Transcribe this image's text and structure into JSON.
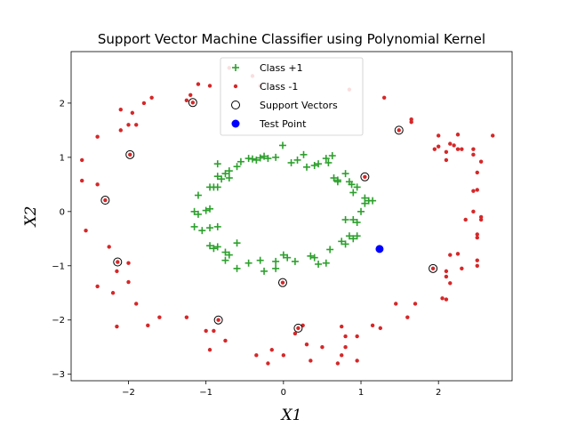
{
  "chart_data": {
    "type": "scatter",
    "title": "Support Vector Machine Classifier using Polynomial Kernel",
    "xlabel": "X1",
    "ylabel": "X2",
    "xlim": [
      -2.74,
      2.95
    ],
    "ylim": [
      -3.12,
      2.95
    ],
    "xticks": [
      -2,
      -1,
      0,
      1,
      2
    ],
    "yticks": [
      -3,
      -2,
      -1,
      0,
      1,
      2
    ],
    "grid": false,
    "legend_position": "top-center",
    "legend": [
      "Class +1",
      "Class -1",
      "Support Vectors",
      "Test Point"
    ],
    "colors": {
      "class_pos": "#2ca02c",
      "class_neg": "#d62728",
      "test_point": "#0000ff",
      "support_vector_edge": "#000000"
    },
    "series": [
      {
        "name": "Class +1",
        "marker": "plus",
        "points": [
          [
            -0.01,
            1.22
          ],
          [
            0.26,
            1.05
          ],
          [
            0.63,
            1.03
          ],
          [
            0.55,
            0.98
          ],
          [
            0.58,
            0.9
          ],
          [
            0.45,
            0.88
          ],
          [
            0.4,
            0.85
          ],
          [
            0.3,
            0.82
          ],
          [
            0.18,
            0.95
          ],
          [
            0.1,
            0.9
          ],
          [
            -0.1,
            1.0
          ],
          [
            -0.2,
            0.98
          ],
          [
            -0.25,
            1.02
          ],
          [
            -0.3,
            0.99
          ],
          [
            -0.35,
            0.95
          ],
          [
            -0.4,
            0.97
          ],
          [
            -0.45,
            0.98
          ],
          [
            -0.55,
            0.92
          ],
          [
            -0.6,
            0.83
          ],
          [
            -0.7,
            0.75
          ],
          [
            -0.75,
            0.7
          ],
          [
            -0.85,
            0.65
          ],
          [
            -0.8,
            0.6
          ],
          [
            -0.7,
            0.62
          ],
          [
            -0.85,
            0.88
          ],
          [
            -0.95,
            0.45
          ],
          [
            -0.9,
            0.45
          ],
          [
            -0.85,
            0.45
          ],
          [
            -1.1,
            0.3
          ],
          [
            -1.15,
            0.0
          ],
          [
            -1.0,
            0.02
          ],
          [
            -0.95,
            0.05
          ],
          [
            -1.1,
            -0.05
          ],
          [
            -1.15,
            -0.28
          ],
          [
            -1.05,
            -0.35
          ],
          [
            -0.95,
            -0.3
          ],
          [
            -0.85,
            -0.28
          ],
          [
            -0.95,
            -0.63
          ],
          [
            -0.9,
            -0.68
          ],
          [
            -0.85,
            -0.65
          ],
          [
            -0.75,
            -0.75
          ],
          [
            -0.7,
            -0.8
          ],
          [
            -0.75,
            -0.9
          ],
          [
            -0.6,
            -0.58
          ],
          [
            -0.6,
            -1.05
          ],
          [
            -0.45,
            -0.95
          ],
          [
            -0.3,
            -0.9
          ],
          [
            -0.25,
            -1.1
          ],
          [
            -0.1,
            -0.92
          ],
          [
            -0.1,
            -1.05
          ],
          [
            0.0,
            -0.8
          ],
          [
            0.05,
            -0.85
          ],
          [
            0.15,
            -0.92
          ],
          [
            0.35,
            -0.82
          ],
          [
            0.4,
            -0.85
          ],
          [
            0.45,
            -0.97
          ],
          [
            0.55,
            -0.95
          ],
          [
            0.6,
            -0.7
          ],
          [
            0.75,
            -0.55
          ],
          [
            0.85,
            -0.45
          ],
          [
            0.9,
            -0.5
          ],
          [
            0.95,
            -0.45
          ],
          [
            0.8,
            -0.6
          ],
          [
            0.8,
            -0.15
          ],
          [
            0.9,
            -0.15
          ],
          [
            0.95,
            -0.2
          ],
          [
            1.0,
            0.0
          ],
          [
            1.05,
            0.15
          ],
          [
            1.1,
            0.2
          ],
          [
            1.15,
            0.2
          ],
          [
            1.05,
            0.25
          ],
          [
            0.9,
            0.35
          ],
          [
            0.95,
            0.45
          ],
          [
            0.88,
            0.5
          ],
          [
            0.85,
            0.55
          ],
          [
            0.7,
            0.58
          ],
          [
            0.65,
            0.62
          ],
          [
            0.7,
            0.55
          ],
          [
            0.8,
            0.7
          ]
        ]
      },
      {
        "name": "Class -1",
        "marker": "dot",
        "points": [
          [
            -0.7,
            2.65
          ],
          [
            -0.4,
            2.5
          ],
          [
            -0.3,
            2.32
          ],
          [
            -0.95,
            2.32
          ],
          [
            -1.2,
            2.15
          ],
          [
            -1.25,
            2.05
          ],
          [
            -1.1,
            2.35
          ],
          [
            -1.7,
            2.1
          ],
          [
            -1.8,
            2.0
          ],
          [
            -1.95,
            1.82
          ],
          [
            -2.1,
            1.88
          ],
          [
            -1.9,
            1.6
          ],
          [
            -2.0,
            1.6
          ],
          [
            -2.1,
            1.5
          ],
          [
            -2.4,
            1.38
          ],
          [
            -2.6,
            0.95
          ],
          [
            -2.4,
            0.5
          ],
          [
            -2.6,
            0.57
          ],
          [
            -2.55,
            -0.35
          ],
          [
            -2.25,
            -0.65
          ],
          [
            -2.15,
            -1.1
          ],
          [
            -2.0,
            -1.3
          ],
          [
            -2.0,
            -0.95
          ],
          [
            -2.4,
            -1.38
          ],
          [
            -2.2,
            -1.5
          ],
          [
            -1.9,
            -1.7
          ],
          [
            -2.15,
            -2.12
          ],
          [
            -1.75,
            -2.1
          ],
          [
            -1.6,
            -1.95
          ],
          [
            -1.25,
            -1.95
          ],
          [
            -1.0,
            -2.2
          ],
          [
            -0.95,
            -2.55
          ],
          [
            -0.9,
            -2.2
          ],
          [
            -0.75,
            -2.38
          ],
          [
            -0.35,
            -2.65
          ],
          [
            -0.2,
            -2.8
          ],
          [
            -0.15,
            -2.55
          ],
          [
            0.0,
            -2.65
          ],
          [
            0.15,
            -2.25
          ],
          [
            0.25,
            -2.1
          ],
          [
            0.3,
            -2.45
          ],
          [
            0.5,
            -2.5
          ],
          [
            0.35,
            -2.75
          ],
          [
            0.7,
            -2.8
          ],
          [
            0.75,
            -2.65
          ],
          [
            0.8,
            -2.5
          ],
          [
            0.8,
            -2.3
          ],
          [
            0.75,
            -2.12
          ],
          [
            0.95,
            -2.3
          ],
          [
            0.95,
            -2.75
          ],
          [
            1.15,
            -2.1
          ],
          [
            1.25,
            -2.15
          ],
          [
            1.45,
            -1.7
          ],
          [
            1.6,
            -1.95
          ],
          [
            1.7,
            -1.7
          ],
          [
            2.05,
            -1.6
          ],
          [
            2.1,
            -1.62
          ],
          [
            2.15,
            -1.32
          ],
          [
            2.1,
            -1.1
          ],
          [
            2.1,
            -1.2
          ],
          [
            2.15,
            -0.8
          ],
          [
            2.25,
            -0.78
          ],
          [
            2.3,
            -1.05
          ],
          [
            2.5,
            -0.9
          ],
          [
            2.5,
            -1.0
          ],
          [
            2.5,
            -0.48
          ],
          [
            2.5,
            -0.42
          ],
          [
            2.45,
            0.0
          ],
          [
            2.55,
            -0.1
          ],
          [
            2.55,
            -0.15
          ],
          [
            2.35,
            -0.15
          ],
          [
            2.5,
            0.4
          ],
          [
            2.45,
            0.38
          ],
          [
            2.5,
            0.72
          ],
          [
            2.55,
            0.92
          ],
          [
            2.45,
            1.05
          ],
          [
            2.45,
            1.15
          ],
          [
            2.7,
            1.4
          ],
          [
            2.3,
            1.15
          ],
          [
            2.25,
            1.15
          ],
          [
            2.2,
            1.22
          ],
          [
            2.15,
            1.25
          ],
          [
            2.1,
            1.1
          ],
          [
            2.1,
            0.95
          ],
          [
            2.0,
            1.4
          ],
          [
            2.0,
            1.2
          ],
          [
            1.95,
            1.15
          ],
          [
            2.25,
            1.42
          ],
          [
            1.65,
            1.65
          ],
          [
            1.65,
            1.7
          ],
          [
            1.3,
            2.1
          ],
          [
            0.85,
            2.25
          ]
        ]
      }
    ],
    "support_vectors": [
      [
        -1.17,
        2.01
      ],
      [
        -1.98,
        1.05
      ],
      [
        -2.3,
        0.21
      ],
      [
        -2.14,
        -0.93
      ],
      [
        -0.84,
        -2.0
      ],
      [
        0.19,
        -2.15
      ],
      [
        -0.01,
        -1.31
      ],
      [
        1.05,
        0.64
      ],
      [
        1.49,
        1.5
      ],
      [
        1.93,
        -1.05
      ]
    ],
    "test_point": [
      1.24,
      -0.69
    ]
  }
}
